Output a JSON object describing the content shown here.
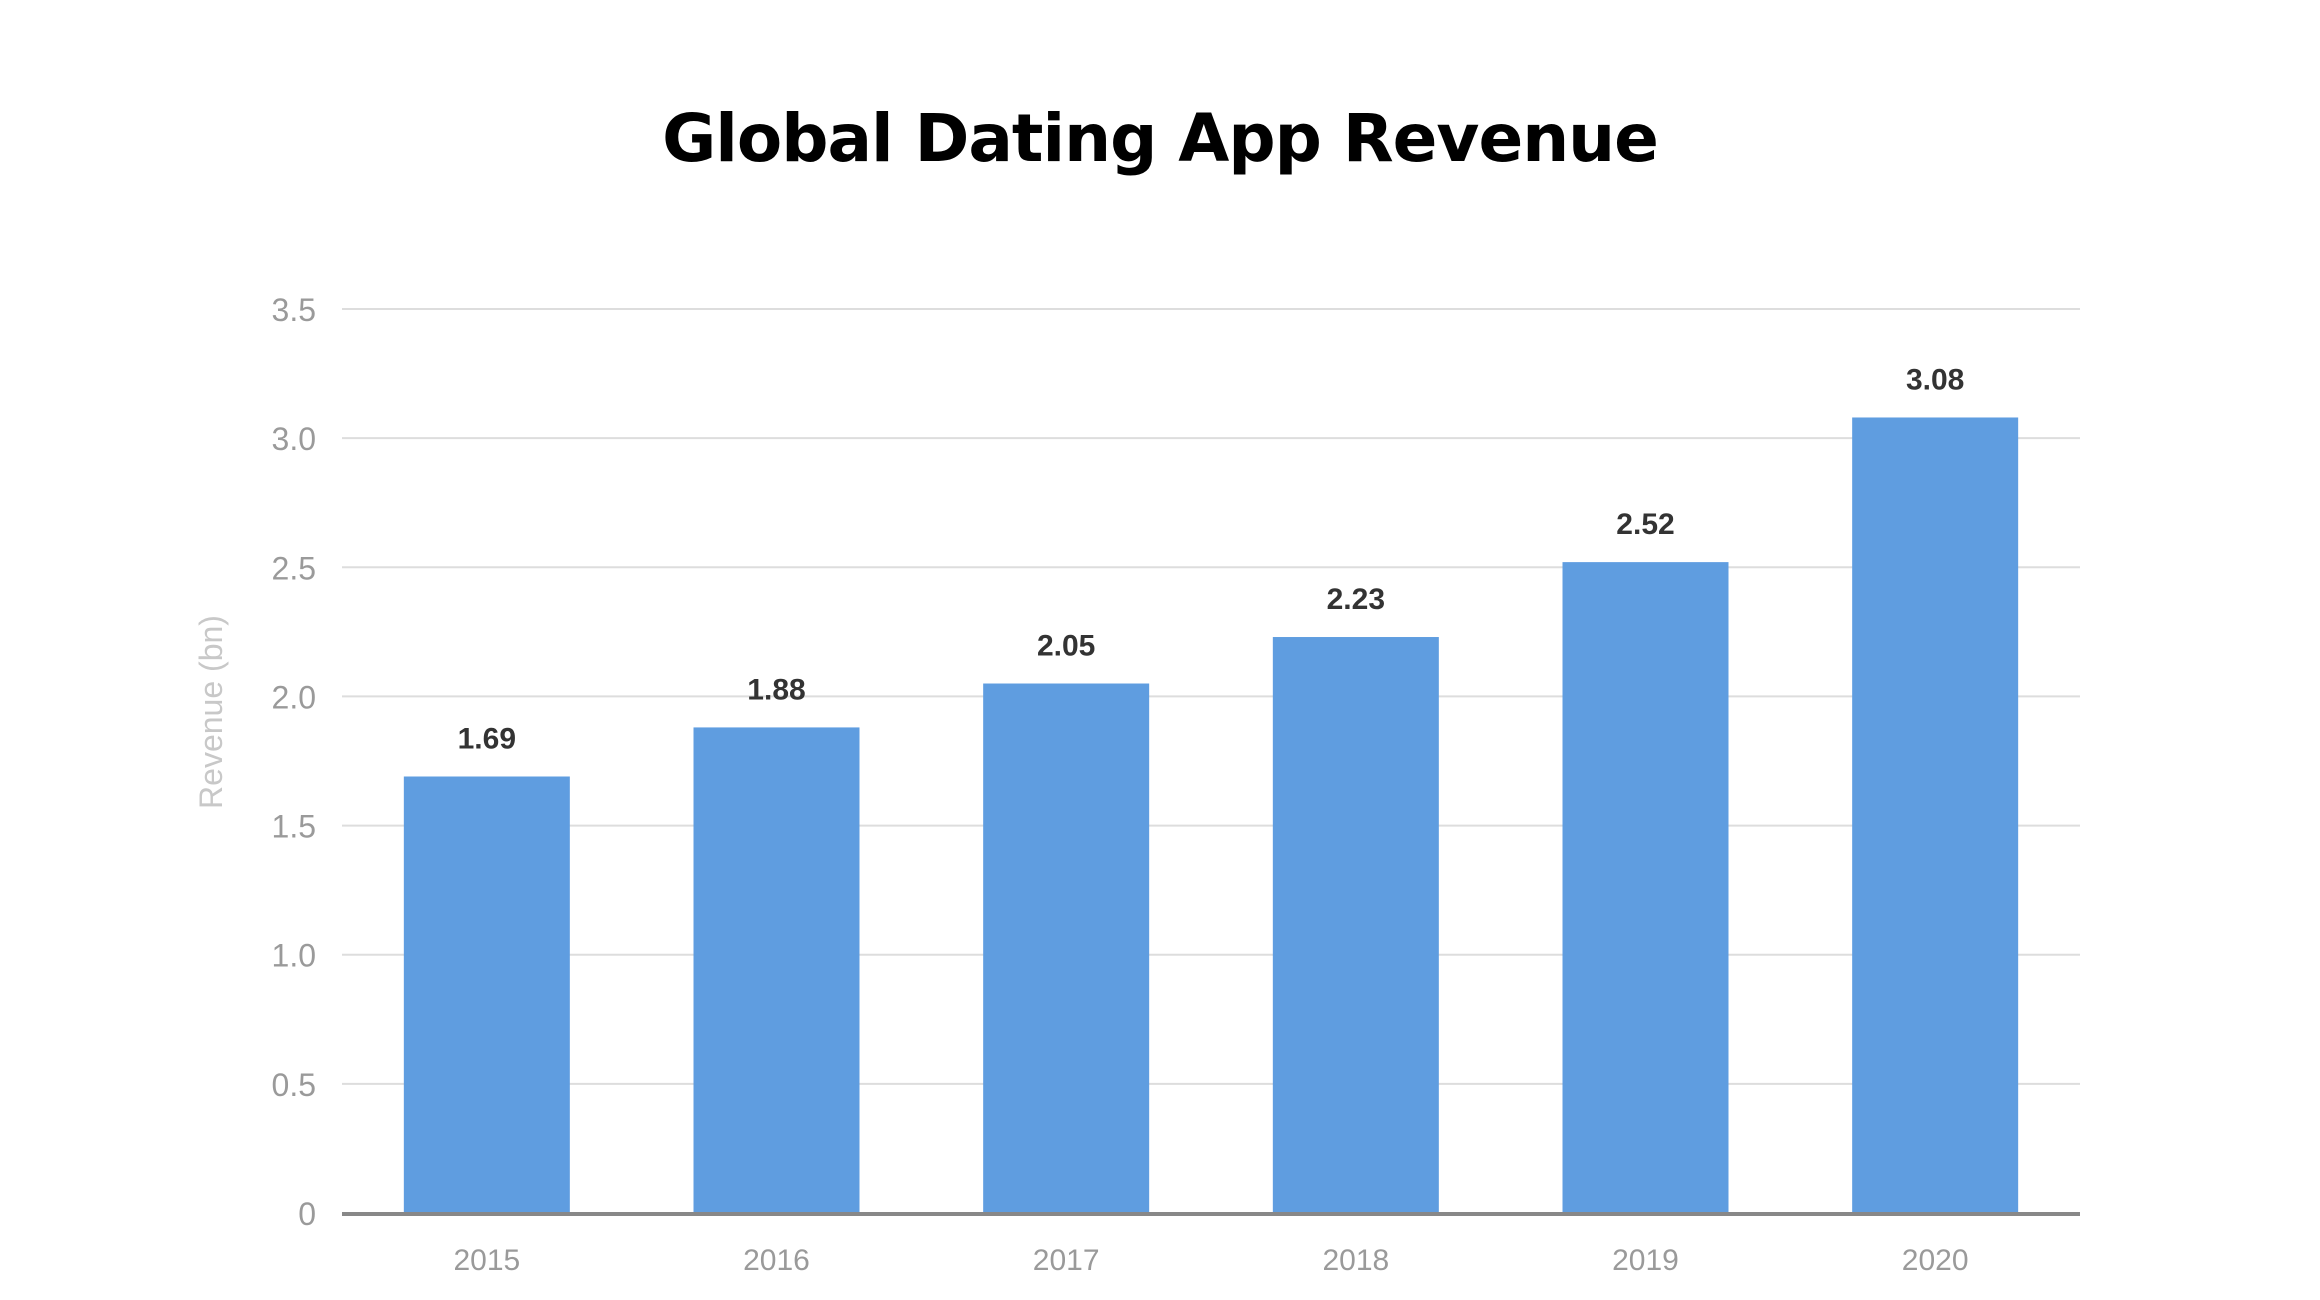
{
  "chart_data": {
    "type": "bar",
    "title": "Global Dating App Revenue",
    "xlabel": "",
    "ylabel": "Revenue (bn)",
    "categories": [
      "2015",
      "2016",
      "2017",
      "2018",
      "2019",
      "2020"
    ],
    "values": [
      1.69,
      1.88,
      2.05,
      2.23,
      2.52,
      3.08
    ],
    "data_labels": [
      "1.69",
      "1.88",
      "2.05",
      "2.23",
      "2.52",
      "3.08"
    ],
    "ylim": [
      0,
      3.5
    ],
    "yticks": [
      "0",
      "0.5",
      "1.0",
      "1.5",
      "2.0",
      "2.5",
      "3.0",
      "3.5"
    ],
    "ytick_values": [
      0,
      0.5,
      1.0,
      1.5,
      2.0,
      2.5,
      3.0,
      3.5
    ],
    "grid": true,
    "legend": "none",
    "colors": {
      "bar": "#5f9de0",
      "gridline": "#dddddd",
      "baseline": "#888888",
      "tick_label": "#9a9a9a",
      "axis_title": "#c8c8c8",
      "data_label": "#333333",
      "title": "#000000"
    }
  }
}
